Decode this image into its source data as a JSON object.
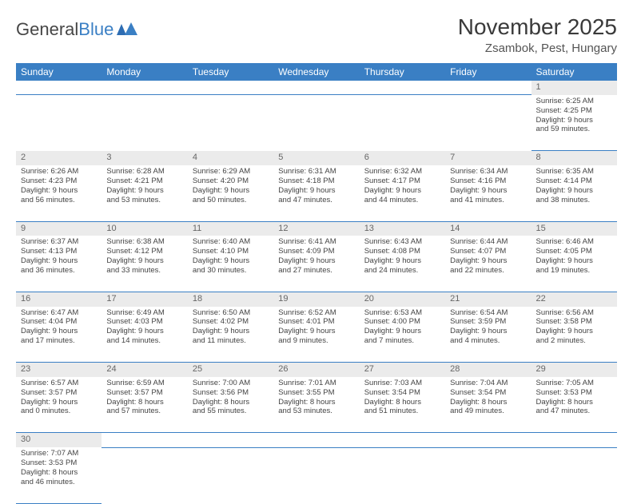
{
  "header": {
    "logo_main": "General",
    "logo_sub": "Blue",
    "month_title": "November 2025",
    "location": "Zsambok, Pest, Hungary"
  },
  "colors": {
    "header_bg": "#3a7fc4",
    "header_text": "#ffffff",
    "daynum_bg": "#ebebeb",
    "row_divider": "#3a7fc4",
    "body_text": "#444444"
  },
  "day_labels": [
    "Sunday",
    "Monday",
    "Tuesday",
    "Wednesday",
    "Thursday",
    "Friday",
    "Saturday"
  ],
  "weeks": [
    [
      null,
      null,
      null,
      null,
      null,
      null,
      {
        "n": "1",
        "sunrise": "Sunrise: 6:25 AM",
        "sunset": "Sunset: 4:25 PM",
        "day1": "Daylight: 9 hours",
        "day2": "and 59 minutes."
      }
    ],
    [
      {
        "n": "2",
        "sunrise": "Sunrise: 6:26 AM",
        "sunset": "Sunset: 4:23 PM",
        "day1": "Daylight: 9 hours",
        "day2": "and 56 minutes."
      },
      {
        "n": "3",
        "sunrise": "Sunrise: 6:28 AM",
        "sunset": "Sunset: 4:21 PM",
        "day1": "Daylight: 9 hours",
        "day2": "and 53 minutes."
      },
      {
        "n": "4",
        "sunrise": "Sunrise: 6:29 AM",
        "sunset": "Sunset: 4:20 PM",
        "day1": "Daylight: 9 hours",
        "day2": "and 50 minutes."
      },
      {
        "n": "5",
        "sunrise": "Sunrise: 6:31 AM",
        "sunset": "Sunset: 4:18 PM",
        "day1": "Daylight: 9 hours",
        "day2": "and 47 minutes."
      },
      {
        "n": "6",
        "sunrise": "Sunrise: 6:32 AM",
        "sunset": "Sunset: 4:17 PM",
        "day1": "Daylight: 9 hours",
        "day2": "and 44 minutes."
      },
      {
        "n": "7",
        "sunrise": "Sunrise: 6:34 AM",
        "sunset": "Sunset: 4:16 PM",
        "day1": "Daylight: 9 hours",
        "day2": "and 41 minutes."
      },
      {
        "n": "8",
        "sunrise": "Sunrise: 6:35 AM",
        "sunset": "Sunset: 4:14 PM",
        "day1": "Daylight: 9 hours",
        "day2": "and 38 minutes."
      }
    ],
    [
      {
        "n": "9",
        "sunrise": "Sunrise: 6:37 AM",
        "sunset": "Sunset: 4:13 PM",
        "day1": "Daylight: 9 hours",
        "day2": "and 36 minutes."
      },
      {
        "n": "10",
        "sunrise": "Sunrise: 6:38 AM",
        "sunset": "Sunset: 4:12 PM",
        "day1": "Daylight: 9 hours",
        "day2": "and 33 minutes."
      },
      {
        "n": "11",
        "sunrise": "Sunrise: 6:40 AM",
        "sunset": "Sunset: 4:10 PM",
        "day1": "Daylight: 9 hours",
        "day2": "and 30 minutes."
      },
      {
        "n": "12",
        "sunrise": "Sunrise: 6:41 AM",
        "sunset": "Sunset: 4:09 PM",
        "day1": "Daylight: 9 hours",
        "day2": "and 27 minutes."
      },
      {
        "n": "13",
        "sunrise": "Sunrise: 6:43 AM",
        "sunset": "Sunset: 4:08 PM",
        "day1": "Daylight: 9 hours",
        "day2": "and 24 minutes."
      },
      {
        "n": "14",
        "sunrise": "Sunrise: 6:44 AM",
        "sunset": "Sunset: 4:07 PM",
        "day1": "Daylight: 9 hours",
        "day2": "and 22 minutes."
      },
      {
        "n": "15",
        "sunrise": "Sunrise: 6:46 AM",
        "sunset": "Sunset: 4:05 PM",
        "day1": "Daylight: 9 hours",
        "day2": "and 19 minutes."
      }
    ],
    [
      {
        "n": "16",
        "sunrise": "Sunrise: 6:47 AM",
        "sunset": "Sunset: 4:04 PM",
        "day1": "Daylight: 9 hours",
        "day2": "and 17 minutes."
      },
      {
        "n": "17",
        "sunrise": "Sunrise: 6:49 AM",
        "sunset": "Sunset: 4:03 PM",
        "day1": "Daylight: 9 hours",
        "day2": "and 14 minutes."
      },
      {
        "n": "18",
        "sunrise": "Sunrise: 6:50 AM",
        "sunset": "Sunset: 4:02 PM",
        "day1": "Daylight: 9 hours",
        "day2": "and 11 minutes."
      },
      {
        "n": "19",
        "sunrise": "Sunrise: 6:52 AM",
        "sunset": "Sunset: 4:01 PM",
        "day1": "Daylight: 9 hours",
        "day2": "and 9 minutes."
      },
      {
        "n": "20",
        "sunrise": "Sunrise: 6:53 AM",
        "sunset": "Sunset: 4:00 PM",
        "day1": "Daylight: 9 hours",
        "day2": "and 7 minutes."
      },
      {
        "n": "21",
        "sunrise": "Sunrise: 6:54 AM",
        "sunset": "Sunset: 3:59 PM",
        "day1": "Daylight: 9 hours",
        "day2": "and 4 minutes."
      },
      {
        "n": "22",
        "sunrise": "Sunrise: 6:56 AM",
        "sunset": "Sunset: 3:58 PM",
        "day1": "Daylight: 9 hours",
        "day2": "and 2 minutes."
      }
    ],
    [
      {
        "n": "23",
        "sunrise": "Sunrise: 6:57 AM",
        "sunset": "Sunset: 3:57 PM",
        "day1": "Daylight: 9 hours",
        "day2": "and 0 minutes."
      },
      {
        "n": "24",
        "sunrise": "Sunrise: 6:59 AM",
        "sunset": "Sunset: 3:57 PM",
        "day1": "Daylight: 8 hours",
        "day2": "and 57 minutes."
      },
      {
        "n": "25",
        "sunrise": "Sunrise: 7:00 AM",
        "sunset": "Sunset: 3:56 PM",
        "day1": "Daylight: 8 hours",
        "day2": "and 55 minutes."
      },
      {
        "n": "26",
        "sunrise": "Sunrise: 7:01 AM",
        "sunset": "Sunset: 3:55 PM",
        "day1": "Daylight: 8 hours",
        "day2": "and 53 minutes."
      },
      {
        "n": "27",
        "sunrise": "Sunrise: 7:03 AM",
        "sunset": "Sunset: 3:54 PM",
        "day1": "Daylight: 8 hours",
        "day2": "and 51 minutes."
      },
      {
        "n": "28",
        "sunrise": "Sunrise: 7:04 AM",
        "sunset": "Sunset: 3:54 PM",
        "day1": "Daylight: 8 hours",
        "day2": "and 49 minutes."
      },
      {
        "n": "29",
        "sunrise": "Sunrise: 7:05 AM",
        "sunset": "Sunset: 3:53 PM",
        "day1": "Daylight: 8 hours",
        "day2": "and 47 minutes."
      }
    ],
    [
      {
        "n": "30",
        "sunrise": "Sunrise: 7:07 AM",
        "sunset": "Sunset: 3:53 PM",
        "day1": "Daylight: 8 hours",
        "day2": "and 46 minutes."
      },
      null,
      null,
      null,
      null,
      null,
      null
    ]
  ]
}
